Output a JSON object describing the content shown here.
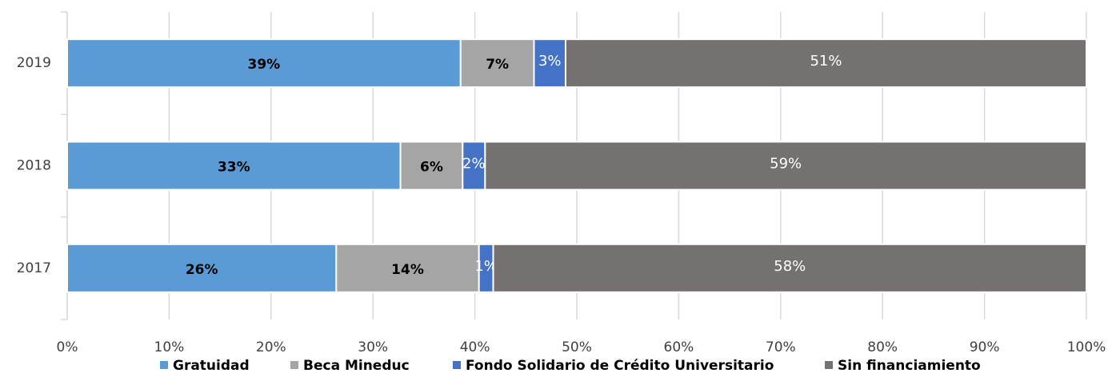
{
  "chart_data": {
    "type": "stacked_hbar",
    "categories": [
      "2019",
      "2018",
      "2017"
    ],
    "series": [
      {
        "name": "Gratuidad",
        "color": "#5b9bd5",
        "values": [
          38.6,
          32.7,
          26.4
        ],
        "value_labels": [
          "39%",
          "33%",
          "26%"
        ]
      },
      {
        "name": "Beca Mineduc",
        "color": "#a5a5a5",
        "values": [
          7.2,
          6.1,
          14.0
        ],
        "value_labels": [
          "7%",
          "6%",
          "14%"
        ]
      },
      {
        "name": "Fondo Solidario de Crédito Universitario",
        "color": "#4472c4",
        "values": [
          3.1,
          2.2,
          1.4
        ],
        "value_labels": [
          "3%",
          "2%",
          "1%"
        ]
      },
      {
        "name": "Sin financiamiento",
        "color": "#767171",
        "values": [
          51.1,
          59.0,
          58.2
        ],
        "value_labels": [
          "51%",
          "59%",
          "58%"
        ]
      }
    ],
    "xlim": [
      0,
      100
    ],
    "xticks": [
      {
        "value": 0,
        "label": "0%"
      },
      {
        "value": 10,
        "label": "10%"
      },
      {
        "value": 20,
        "label": "20%"
      },
      {
        "value": 30,
        "label": "30%"
      },
      {
        "value": 40,
        "label": "40%"
      },
      {
        "value": 50,
        "label": "50%"
      },
      {
        "value": 60,
        "label": "60%"
      },
      {
        "value": 70,
        "label": "70%"
      },
      {
        "value": 80,
        "label": "80%"
      },
      {
        "value": 90,
        "label": "90%"
      },
      {
        "value": 100,
        "label": "100%"
      }
    ],
    "grid": true,
    "legend": "bottom"
  }
}
